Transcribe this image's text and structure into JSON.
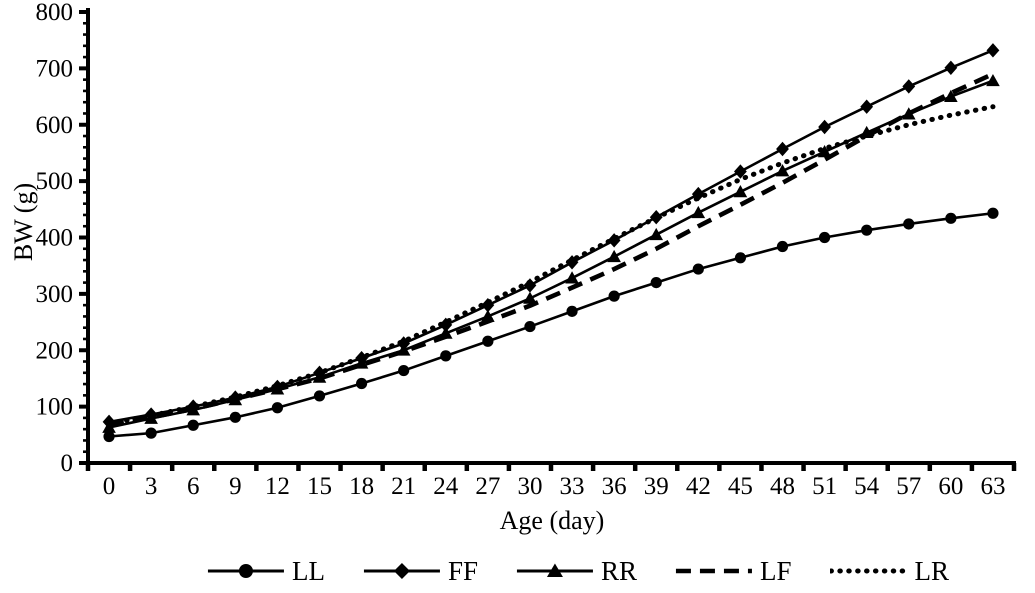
{
  "chart_data": {
    "type": "line",
    "title": "",
    "xlabel": "Age (day)",
    "ylabel": "BW (g)",
    "x": [
      0,
      3,
      6,
      9,
      12,
      15,
      18,
      21,
      24,
      27,
      30,
      33,
      36,
      39,
      42,
      45,
      48,
      51,
      54,
      57,
      60,
      63
    ],
    "ylim": [
      0,
      800
    ],
    "ytick_step": 100,
    "yminor_step": 20,
    "grid": false,
    "legend_position": "bottom",
    "foreground": "#000000",
    "background": "#ffffff",
    "series": [
      {
        "name": "LL",
        "marker": "circle",
        "line": "solid",
        "values": [
          47,
          53,
          67,
          81,
          98,
          119,
          141,
          164,
          190,
          216,
          242,
          269,
          296,
          320,
          344,
          364,
          384,
          400,
          413,
          424,
          434,
          443
        ]
      },
      {
        "name": "FF",
        "marker": "diamond",
        "line": "solid",
        "values": [
          73,
          86,
          100,
          116,
          135,
          160,
          186,
          212,
          245,
          280,
          315,
          356,
          395,
          436,
          477,
          517,
          557,
          596,
          632,
          668,
          701,
          732
        ]
      },
      {
        "name": "RR",
        "marker": "triangle",
        "line": "solid",
        "values": [
          63,
          79,
          94,
          112,
          131,
          152,
          177,
          200,
          230,
          260,
          292,
          328,
          366,
          405,
          444,
          481,
          518,
          552,
          586,
          619,
          650,
          678
        ]
      },
      {
        "name": "LF",
        "marker": "none",
        "line": "dashed",
        "values": [
          68,
          81,
          96,
          113,
          131,
          150,
          174,
          198,
          224,
          251,
          279,
          311,
          344,
          380,
          420,
          458,
          497,
          538,
          580,
          620,
          656,
          690
        ]
      },
      {
        "name": "LR",
        "marker": "none",
        "line": "dotted",
        "values": [
          70,
          84,
          100,
          117,
          137,
          160,
          187,
          216,
          250,
          285,
          321,
          360,
          398,
          435,
          470,
          503,
          532,
          558,
          580,
          600,
          617,
          632
        ]
      }
    ]
  }
}
